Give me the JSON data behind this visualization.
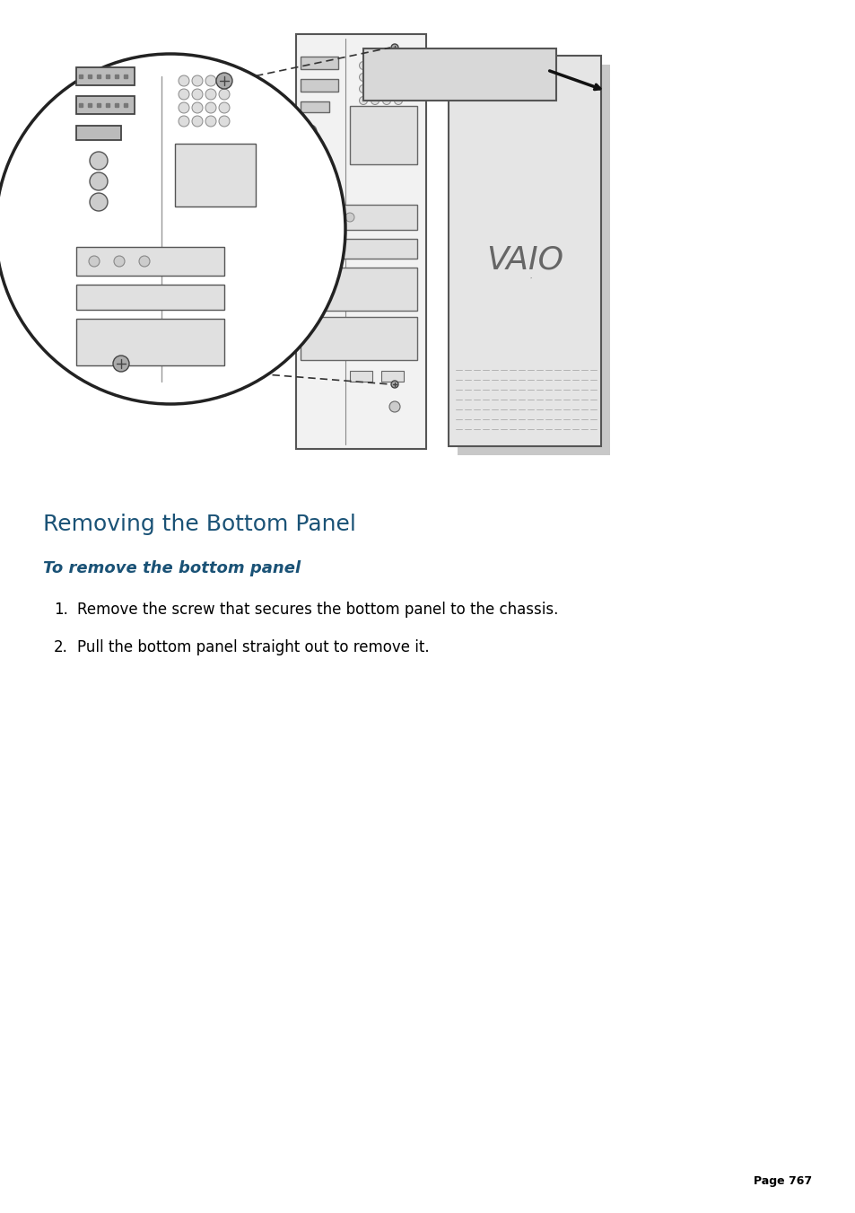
{
  "title": "Removing the Bottom Panel",
  "subtitle": "To remove the bottom panel",
  "steps": [
    "Remove the screw that secures the bottom panel to the chassis.",
    "Pull the bottom panel straight out to remove it."
  ],
  "page_number": "Page 767",
  "title_color": "#1a5276",
  "subtitle_color": "#1a5276",
  "body_color": "#000000",
  "page_num_color": "#000000",
  "background_color": "#ffffff"
}
